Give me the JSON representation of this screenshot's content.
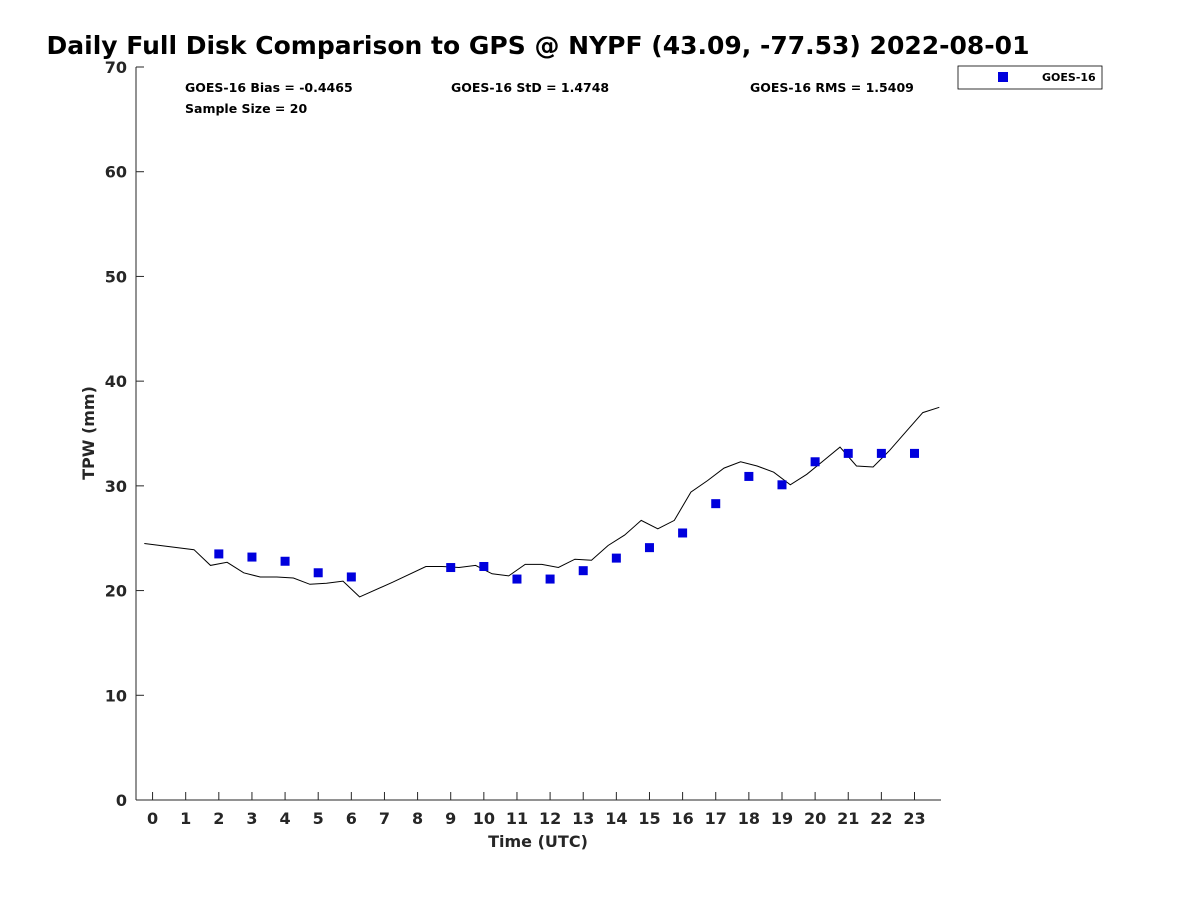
{
  "chart_data": {
    "type": "scatter",
    "title": "Daily Full Disk Comparison to GPS @ NYPF (43.09, -77.53) 2022-08-01",
    "xlabel": "Time (UTC)",
    "ylabel": "TPW (mm)",
    "xlim": [
      -0.5,
      23.8
    ],
    "ylim": [
      0,
      70
    ],
    "xticks": [
      0,
      1,
      2,
      3,
      4,
      5,
      6,
      7,
      8,
      9,
      10,
      11,
      12,
      13,
      14,
      15,
      16,
      17,
      18,
      19,
      20,
      21,
      22,
      23
    ],
    "yticks": [
      0,
      10,
      20,
      30,
      40,
      50,
      60,
      70
    ],
    "grid": false,
    "legend_position": "top-right",
    "stats": {
      "bias": "GOES-16 Bias = -0.4465",
      "std": "GOES-16 StD = 1.4748",
      "rms": "GOES-16 RMS = 1.5409",
      "sample": "Sample Size = 20"
    },
    "series": [
      {
        "name": "GOES-16",
        "kind": "scatter",
        "marker": "square",
        "color": "#0000dd",
        "x": [
          2,
          3,
          4,
          5,
          6,
          9,
          10,
          11,
          12,
          13,
          14,
          15,
          16,
          17,
          18,
          19,
          20,
          21,
          22,
          23
        ],
        "y": [
          23.5,
          23.2,
          22.8,
          21.7,
          21.3,
          22.2,
          22.3,
          21.1,
          21.1,
          21.9,
          23.1,
          24.1,
          25.5,
          28.3,
          30.9,
          30.1,
          32.3,
          33.1,
          33.1,
          33.1
        ]
      },
      {
        "kind": "line",
        "color": "#000000",
        "x": [
          -0.25,
          1.25,
          1.75,
          2.25,
          2.75,
          3.25,
          3.75,
          4.25,
          4.75,
          5.25,
          5.75,
          6.25,
          7.25,
          8.25,
          8.75,
          9.25,
          9.75,
          10.25,
          10.75,
          11.25,
          11.75,
          12.25,
          12.75,
          13.25,
          13.75,
          14.25,
          14.75,
          15.25,
          15.75,
          16.25,
          16.75,
          17.25,
          17.75,
          18.25,
          18.75,
          19.25,
          19.75,
          20.25,
          20.75,
          21.25,
          21.75,
          22.25,
          22.75,
          23.25,
          23.75
        ],
        "y": [
          24.5,
          23.9,
          22.4,
          22.7,
          21.7,
          21.3,
          21.3,
          21.2,
          20.6,
          20.7,
          20.9,
          19.4,
          20.8,
          22.3,
          22.3,
          22.2,
          22.4,
          21.6,
          21.4,
          22.5,
          22.5,
          22.2,
          23.0,
          22.9,
          24.3,
          25.3,
          26.7,
          25.9,
          26.7,
          29.4,
          30.5,
          31.7,
          32.3,
          31.9,
          31.3,
          30.1,
          31.1,
          32.4,
          33.7,
          31.9,
          31.8,
          33.4,
          35.2,
          37.0,
          37.5
        ]
      }
    ]
  }
}
